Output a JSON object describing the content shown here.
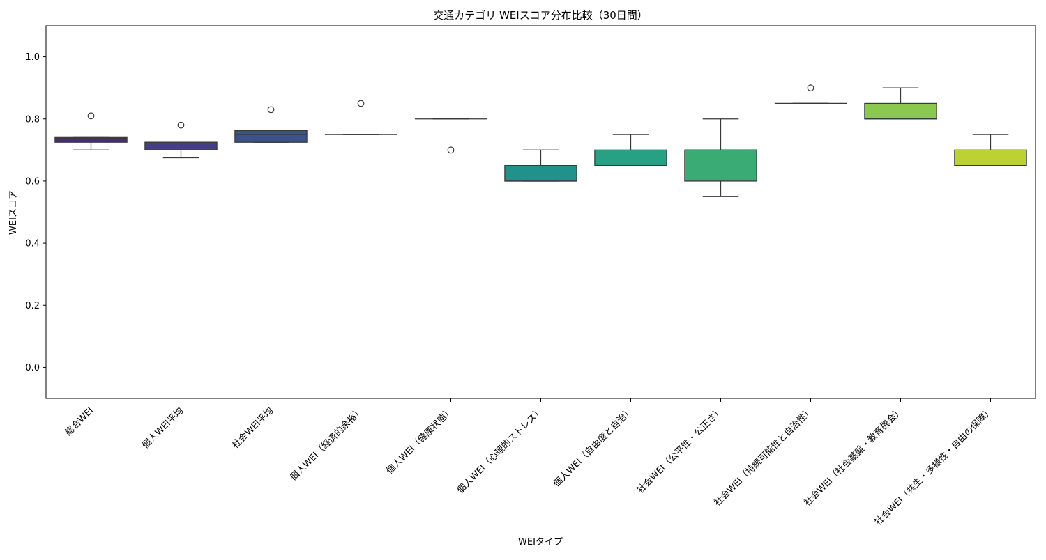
{
  "chart_data": {
    "type": "box",
    "title": "交通カテゴリ WEIスコア分布比較（30日間）",
    "xlabel": "WEIタイプ",
    "ylabel": "WEIスコア",
    "ylim": [
      -0.1,
      1.1
    ],
    "yticks": [
      0.0,
      0.2,
      0.4,
      0.6,
      0.8,
      1.0
    ],
    "ytick_labels": [
      "0.0",
      "0.2",
      "0.4",
      "0.6",
      "0.8",
      "1.0"
    ],
    "grid": false,
    "legend": "none",
    "categories": [
      "総合WEI",
      "個人WEI平均",
      "社会WEI平均",
      "個人WEI（経済的余裕）",
      "個人WEI（健康状態）",
      "個人WEI（心理的ストレス）",
      "個人WEI（自由度と自治）",
      "社会WEI（公平性・公正さ）",
      "社会WEI（持続可能性と自治性）",
      "社会WEI（社会基盤・教育機会）",
      "社会WEI（共生・多様性・自由の保障）"
    ],
    "boxes": [
      {
        "whisker_low": 0.7,
        "q1": 0.725,
        "median": 0.7375,
        "q3": 0.7425,
        "whisker_high": 0.7425,
        "outliers": [
          0.81
        ],
        "color": "#472c7a"
      },
      {
        "whisker_low": 0.675,
        "q1": 0.7,
        "median": 0.725,
        "q3": 0.725,
        "whisker_high": 0.725,
        "outliers": [
          0.78
        ],
        "color": "#433e85"
      },
      {
        "whisker_low": 0.725,
        "q1": 0.725,
        "median": 0.75,
        "q3": 0.7625,
        "whisker_high": 0.7625,
        "outliers": [
          0.83
        ],
        "color": "#3b528b"
      },
      {
        "whisker_low": 0.75,
        "q1": 0.75,
        "median": 0.75,
        "q3": 0.75,
        "whisker_high": 0.75,
        "outliers": [
          0.85
        ],
        "color": "#33638d"
      },
      {
        "whisker_low": 0.8,
        "q1": 0.8,
        "median": 0.8,
        "q3": 0.8,
        "whisker_high": 0.8,
        "outliers": [
          0.7
        ],
        "color": "#2c728e"
      },
      {
        "whisker_low": 0.6,
        "q1": 0.6,
        "median": 0.6,
        "q3": 0.65,
        "whisker_high": 0.7,
        "outliers": [],
        "color": "#21918c"
      },
      {
        "whisker_low": 0.65,
        "q1": 0.65,
        "median": 0.65,
        "q3": 0.7,
        "whisker_high": 0.75,
        "outliers": [],
        "color": "#27a083"
      },
      {
        "whisker_low": 0.55,
        "q1": 0.6,
        "median": 0.7,
        "q3": 0.7,
        "whisker_high": 0.8,
        "outliers": [],
        "color": "#3bab76"
      },
      {
        "whisker_low": 0.85,
        "q1": 0.85,
        "median": 0.85,
        "q3": 0.85,
        "whisker_high": 0.85,
        "outliers": [
          0.9
        ],
        "color": "#55c667"
      },
      {
        "whisker_low": 0.8,
        "q1": 0.8,
        "median": 0.8,
        "q3": 0.85,
        "whisker_high": 0.9,
        "outliers": [],
        "color": "#8bc84f"
      },
      {
        "whisker_low": 0.65,
        "q1": 0.65,
        "median": 0.65,
        "q3": 0.7,
        "whisker_high": 0.75,
        "outliers": [],
        "color": "#bcd233"
      }
    ]
  }
}
